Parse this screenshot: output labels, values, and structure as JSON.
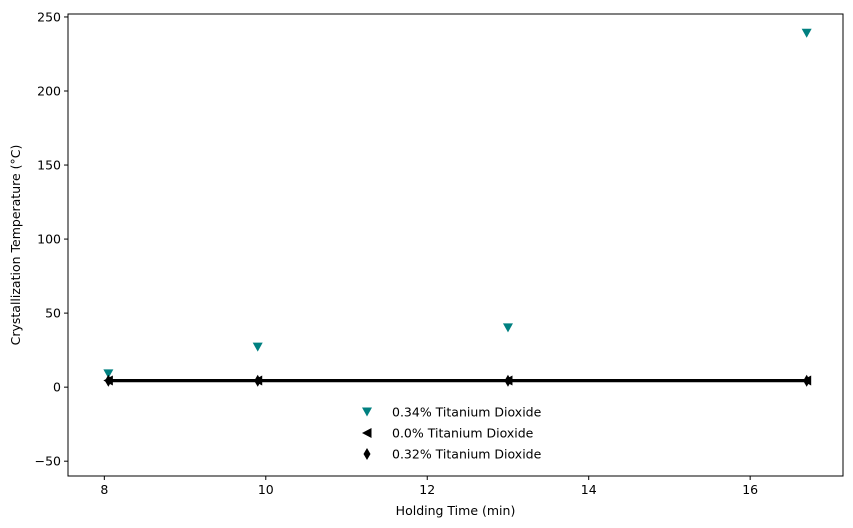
{
  "chart_data": {
    "type": "scatter",
    "title": "",
    "xlabel": "Holding Time (min)",
    "ylabel": "Crystallization Temperature (°C)",
    "xlim": [
      7.55,
      17.15
    ],
    "ylim": [
      -60,
      252
    ],
    "xticks": [
      8,
      10,
      12,
      14,
      16
    ],
    "yticks": [
      -50,
      0,
      50,
      100,
      150,
      200,
      250
    ],
    "grid": false,
    "legend_position": "lower-center",
    "series": [
      {
        "name": "0.34% Titanium Dioxide",
        "marker": "triangle-down",
        "color": "#008080",
        "line": false,
        "x": [
          8.05,
          9.9,
          13.0,
          16.7
        ],
        "y": [
          9,
          27,
          40,
          239
        ]
      },
      {
        "name": "0.0% Titanium Dioxide",
        "marker": "triangle-left",
        "color": "#000000",
        "line": true,
        "x": [
          8.05,
          9.9,
          13.0,
          16.7
        ],
        "y": [
          4.5,
          4.5,
          4.5,
          4.5
        ]
      },
      {
        "name": "0.32% Titanium Dioxide",
        "marker": "thin-diamond",
        "color": "#000000",
        "line": true,
        "x": [
          8.05,
          9.9,
          13.0,
          16.7
        ],
        "y": [
          4.3,
          4.3,
          4.3,
          4.3
        ]
      }
    ]
  }
}
